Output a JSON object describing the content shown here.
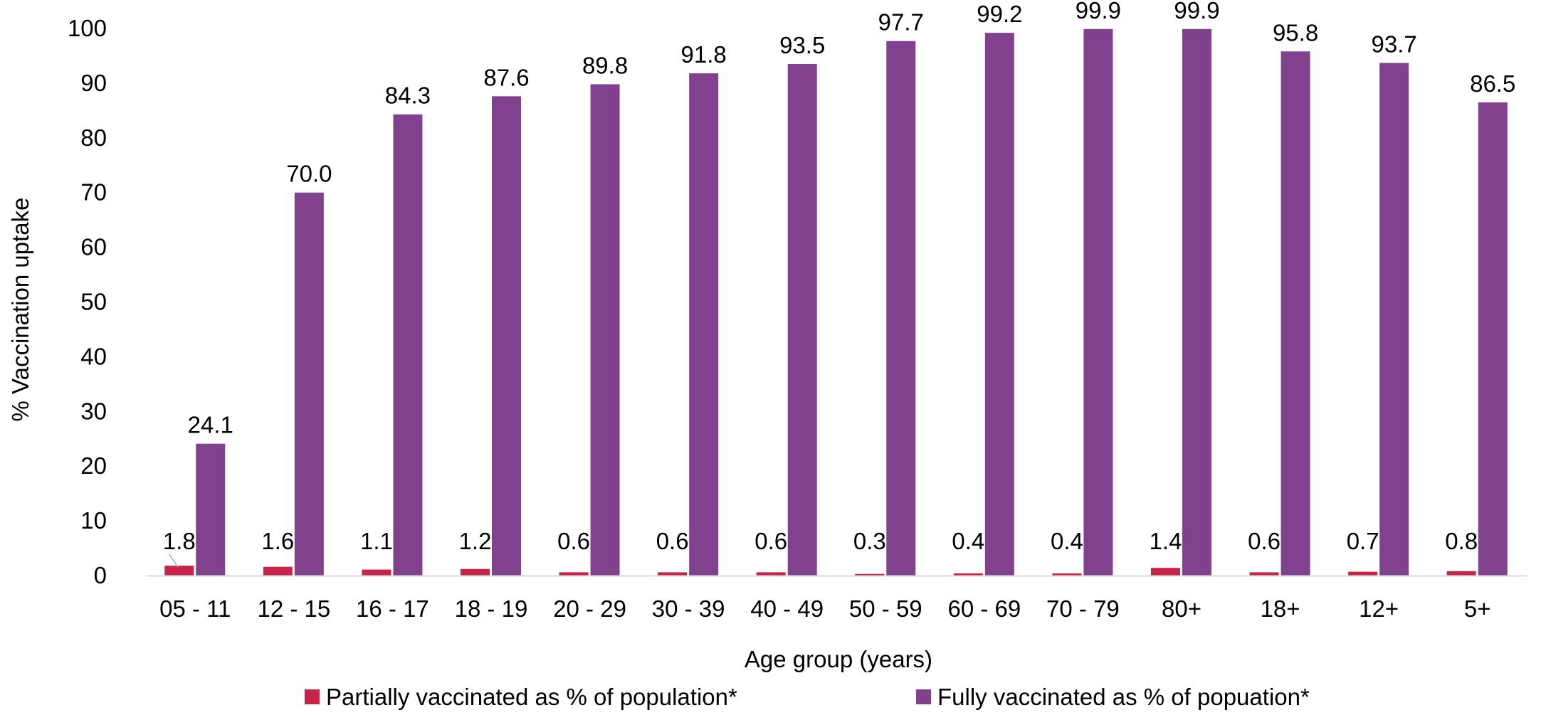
{
  "chart_data": {
    "type": "bar",
    "title": "",
    "xlabel": "Age group (years)",
    "ylabel": "% Vaccination uptake",
    "ylim": [
      0,
      100
    ],
    "yticks": [
      0,
      10,
      20,
      30,
      40,
      50,
      60,
      70,
      80,
      90,
      100
    ],
    "grid": false,
    "legend_position": "bottom",
    "categories": [
      "05 - 11",
      "12 - 15",
      "16 - 17",
      "18 - 19",
      "20 - 29",
      "30 - 39",
      "40 - 49",
      "50 - 59",
      "60 - 69",
      "70 - 79",
      "80+",
      "18+",
      "12+",
      "5+"
    ],
    "series": [
      {
        "name": "Partially vaccinated as % of population*",
        "color": "#c8234a",
        "values": [
          1.8,
          1.6,
          1.1,
          1.2,
          0.6,
          0.6,
          0.6,
          0.3,
          0.4,
          0.4,
          1.4,
          0.6,
          0.7,
          0.8
        ],
        "labels": [
          "1.8",
          "1.6",
          "1.1",
          "1.2",
          "0.6",
          "0.6",
          "0.6",
          "0.3",
          "0.4",
          "0.4",
          "1.4",
          "0.6",
          "0.7",
          "0.8"
        ]
      },
      {
        "name": "Fully vaccinated as % of popuation*",
        "color": "#81418e",
        "values": [
          24.1,
          70.0,
          84.3,
          87.6,
          89.8,
          91.8,
          93.5,
          97.7,
          99.2,
          99.9,
          99.9,
          95.8,
          93.7,
          86.5
        ],
        "labels": [
          "24.1",
          "70.0",
          "84.3",
          "87.6",
          "89.8",
          "91.8",
          "93.5",
          "97.7",
          "99.2",
          "99.9",
          "99.9",
          "95.8",
          "93.7",
          "86.5"
        ]
      }
    ]
  }
}
